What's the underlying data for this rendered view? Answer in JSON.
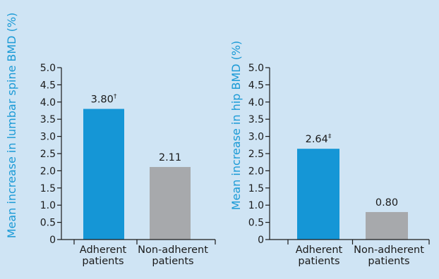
{
  "colors": {
    "background": "#cfe4f4",
    "adherent": "#1596d6",
    "non_adherent": "#a7a9ac",
    "axis_title": "#1a9ad6"
  },
  "chart_data": [
    {
      "type": "bar",
      "ylabel": "Mean increase in lumbar spine BMD (%)",
      "xlabel": "",
      "ylim": [
        0,
        5.0
      ],
      "yticks": [
        "0",
        "0.5",
        "1.0",
        "1.5",
        "2.0",
        "2.5",
        "3.0",
        "3.5",
        "4.0",
        "4.5",
        "5.0"
      ],
      "categories": [
        [
          "Adherent",
          "patients"
        ],
        [
          "Non-adherent",
          "patients"
        ]
      ],
      "values": [
        3.8,
        2.11
      ],
      "data_labels": [
        "3.80",
        "2.11"
      ],
      "data_label_marks": [
        "†",
        ""
      ],
      "grid": false
    },
    {
      "type": "bar",
      "ylabel": "Mean increase in hip BMD (%)",
      "xlabel": "",
      "ylim": [
        0,
        5.0
      ],
      "yticks": [
        "0",
        "0.5",
        "1.0",
        "1.5",
        "2.0",
        "2.5",
        "3.0",
        "3.5",
        "4.0",
        "4.5",
        "5.0"
      ],
      "categories": [
        [
          "Adherent",
          "patients"
        ],
        [
          "Non-adherent",
          "patients"
        ]
      ],
      "values": [
        2.64,
        0.8
      ],
      "data_labels": [
        "2.64",
        "0.80"
      ],
      "data_label_marks": [
        "‡",
        ""
      ],
      "grid": false
    }
  ]
}
